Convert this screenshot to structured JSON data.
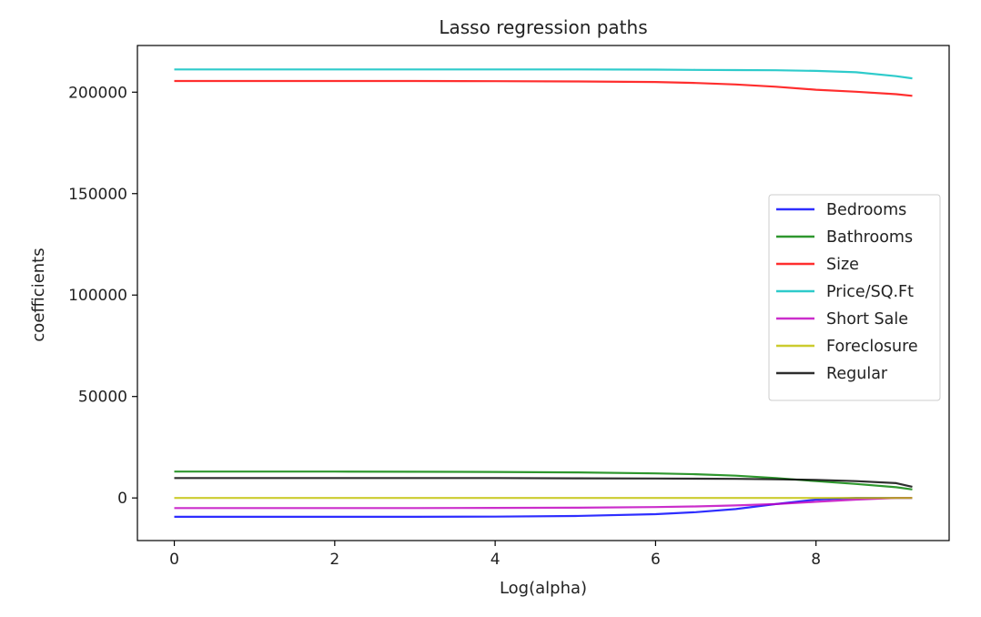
{
  "chart_data": {
    "type": "line",
    "title": "Lasso regression paths",
    "xlabel": "Log(alpha)",
    "ylabel": "coefficients",
    "xlim": [
      -0.46,
      9.66
    ],
    "ylim": [
      -21000,
      223000
    ],
    "xticks": [
      0,
      2,
      4,
      6,
      8
    ],
    "xtick_labels": [
      "0",
      "2",
      "4",
      "6",
      "8"
    ],
    "yticks": [
      0,
      50000,
      100000,
      150000,
      200000
    ],
    "ytick_labels": [
      "0",
      "50000",
      "100000",
      "150000",
      "200000"
    ],
    "grid": false,
    "legend_position": "center-right",
    "x": [
      0,
      1,
      2,
      3,
      4,
      5,
      6,
      6.5,
      7,
      7.5,
      8,
      8.5,
      9,
      9.2
    ],
    "series": [
      {
        "name": "Bedrooms",
        "color": "#0000ff",
        "values": [
          -9300,
          -9300,
          -9300,
          -9300,
          -9200,
          -8900,
          -8000,
          -7000,
          -5500,
          -3000,
          -800,
          0,
          0,
          0
        ]
      },
      {
        "name": "Bathrooms",
        "color": "#008000",
        "values": [
          13000,
          13000,
          13000,
          12900,
          12800,
          12600,
          12100,
          11700,
          11000,
          9800,
          8300,
          6900,
          5300,
          4200
        ]
      },
      {
        "name": "Size",
        "color": "#ff0000",
        "values": [
          205500,
          205500,
          205500,
          205500,
          205400,
          205300,
          205000,
          204500,
          203800,
          202700,
          201200,
          200200,
          199000,
          198200
        ]
      },
      {
        "name": "Price/SQ.Ft",
        "color": "#00bfbf",
        "values": [
          211200,
          211200,
          211200,
          211200,
          211200,
          211200,
          211100,
          211000,
          210900,
          210800,
          210500,
          209800,
          207900,
          206800
        ]
      },
      {
        "name": "Short Sale",
        "color": "#bf00bf",
        "values": [
          -5000,
          -5000,
          -5000,
          -5000,
          -4900,
          -4800,
          -4500,
          -4200,
          -3700,
          -3000,
          -1900,
          -800,
          0,
          0
        ]
      },
      {
        "name": "Foreclosure",
        "color": "#bfbf00",
        "values": [
          0,
          0,
          0,
          0,
          0,
          0,
          0,
          0,
          0,
          0,
          0,
          0,
          0,
          0
        ]
      },
      {
        "name": "Regular",
        "color": "#000000",
        "values": [
          9800,
          9800,
          9800,
          9800,
          9800,
          9700,
          9600,
          9500,
          9400,
          9200,
          8900,
          8300,
          7300,
          5500
        ]
      }
    ]
  }
}
